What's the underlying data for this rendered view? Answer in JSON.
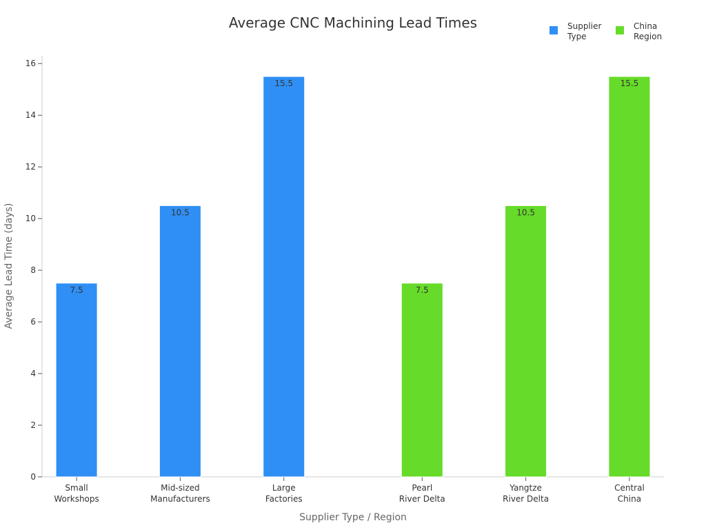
{
  "chart_data": {
    "type": "bar",
    "title": "Average CNC Machining Lead Times",
    "xlabel": "Supplier Type / Region",
    "ylabel": "Average Lead Time (days)",
    "ylim": [
      0,
      16.3
    ],
    "yticks": [
      0,
      2,
      4,
      6,
      8,
      10,
      12,
      14,
      16
    ],
    "grid": false,
    "legend_position": "top-right",
    "categories": [
      [
        "Small",
        "Workshops"
      ],
      [
        "Mid-sized",
        "Manufacturers"
      ],
      [
        "Large",
        "Factories"
      ],
      [
        "Pearl",
        "River Delta"
      ],
      [
        "Yangtze",
        "River Delta"
      ],
      [
        "Central",
        "China"
      ]
    ],
    "series": [
      {
        "name": "Supplier Type",
        "legend_lines": [
          "Supplier",
          "Type"
        ],
        "color": "#2f8ff5",
        "values": [
          7.5,
          10.5,
          15.5,
          null,
          null,
          null
        ],
        "labels": [
          "7.5",
          "10.5",
          "15.5",
          null,
          null,
          null
        ]
      },
      {
        "name": "China Region",
        "legend_lines": [
          "China",
          "Region"
        ],
        "color": "#66db29",
        "values": [
          null,
          null,
          null,
          7.5,
          10.5,
          15.5
        ],
        "labels": [
          null,
          null,
          null,
          "7.5",
          "10.5",
          "15.5"
        ]
      }
    ]
  }
}
